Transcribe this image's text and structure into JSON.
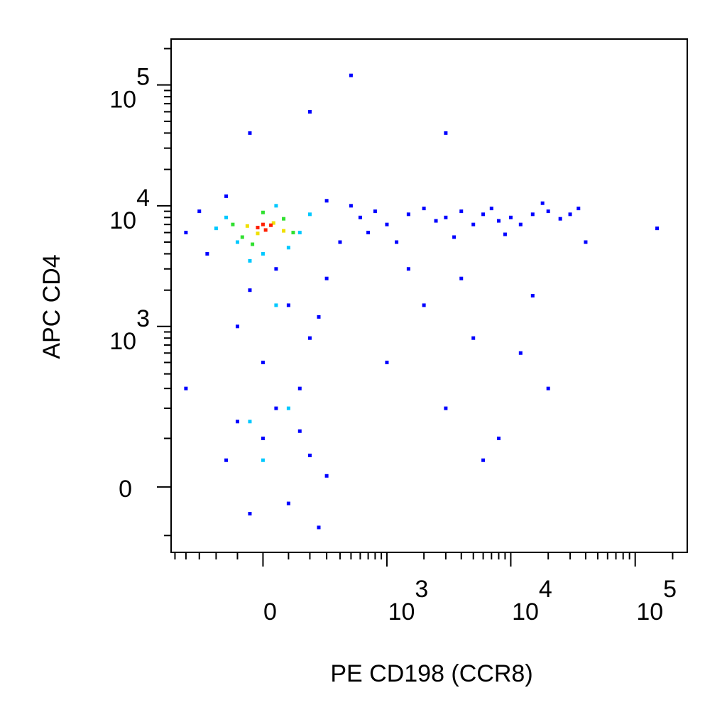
{
  "chart_data": {
    "type": "scatter",
    "scale": "biexponential",
    "xlabel": "PE CD198 (CCR8)",
    "ylabel": "APC CD4",
    "xlim": [
      -540,
      262000
    ],
    "ylim": [
      -150,
      240000
    ],
    "xticks": [
      0,
      {
        "value": 1000,
        "label": "10",
        "power": "3"
      },
      {
        "value": 10000,
        "label": "10",
        "power": "4"
      },
      {
        "value": 100000,
        "label": "10",
        "power": "5"
      }
    ],
    "yticks": [
      0,
      {
        "value": 1000,
        "label": "10",
        "power": "3"
      },
      {
        "value": 10000,
        "label": "10",
        "power": "4"
      },
      {
        "value": 100000,
        "label": "10",
        "power": "5"
      }
    ],
    "xminorticks": [
      -500,
      -400,
      -300,
      -200,
      -100,
      100,
      200,
      300,
      400,
      500,
      600,
      700,
      800,
      900,
      2000,
      3000,
      4000,
      5000,
      6000,
      7000,
      8000,
      9000,
      20000,
      30000,
      40000,
      50000,
      60000,
      70000,
      80000,
      90000,
      200000
    ],
    "yminorticks": [
      -100,
      100,
      200,
      300,
      400,
      500,
      600,
      700,
      800,
      900,
      2000,
      3000,
      4000,
      5000,
      6000,
      7000,
      8000,
      9000,
      20000,
      30000,
      40000,
      50000,
      60000,
      70000,
      80000,
      90000,
      200000
    ],
    "series": [
      {
        "color": "#0000ff",
        "x": [
          600,
          800,
          1000,
          1500,
          2000,
          2500,
          3000,
          4000,
          5000,
          6000,
          7000,
          8000,
          10000,
          12000,
          15000,
          20000,
          25000,
          30000,
          35000,
          1200,
          3500,
          9000,
          700,
          18000,
          -50,
          100,
          200,
          0,
          -100,
          300,
          150,
          50,
          250,
          -150,
          -50,
          0,
          100,
          200,
          300,
          -100,
          50,
          250,
          150,
          1000,
          2000,
          3000,
          5000,
          8000,
          12000,
          15000,
          4000,
          1500,
          6000,
          20000,
          -50,
          200,
          500,
          3000,
          150000,
          40000,
          -400,
          -400,
          -300,
          -250,
          400,
          300,
          -150,
          500
        ],
        "y": [
          8000,
          9000,
          7000,
          8500,
          9500,
          7500,
          8000,
          9000,
          7000,
          8500,
          9500,
          7500,
          8000,
          7000,
          8500,
          9000,
          7800,
          8500,
          9500,
          5000,
          5500,
          5800,
          6000,
          10500,
          2000,
          1500,
          800,
          500,
          1000,
          2500,
          300,
          3000,
          1200,
          50,
          -50,
          100,
          -30,
          60,
          20,
          150,
          200,
          -80,
          120,
          500,
          1500,
          200,
          800,
          100,
          600,
          1800,
          2500,
          3000,
          50,
          300,
          40000,
          60000,
          120000,
          40000,
          6500,
          5000,
          6000,
          300,
          9000,
          4000,
          5000,
          11000,
          12000,
          10000
        ]
      },
      {
        "color": "#00c8ff",
        "x": [
          -150,
          -100,
          0,
          100,
          200,
          -50,
          150,
          -200,
          50,
          100,
          0,
          -50,
          50
        ],
        "y": [
          8000,
          5000,
          4000,
          4500,
          8500,
          3500,
          6000,
          6500,
          10000,
          200,
          50,
          150,
          1500
        ]
      },
      {
        "color": "#30e030",
        "x": [
          -120,
          -80,
          80,
          120,
          0,
          -40
        ],
        "y": [
          7000,
          5500,
          7800,
          6000,
          8800,
          4800
        ]
      },
      {
        "color": "#f0e000",
        "x": [
          -60,
          40,
          80,
          -20
        ],
        "y": [
          6800,
          7200,
          6200,
          5900
        ]
      },
      {
        "color": "#ff2000",
        "x": [
          -20,
          10,
          30,
          0
        ],
        "y": [
          6600,
          6300,
          6900,
          7000
        ]
      }
    ]
  }
}
